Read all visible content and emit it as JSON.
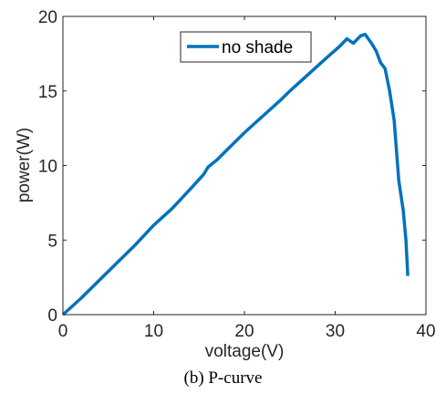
{
  "chart_data": {
    "type": "line",
    "xlabel": "voltage(V)",
    "ylabel": "power(W)",
    "xlim": [
      0,
      40
    ],
    "ylim": [
      0,
      20
    ],
    "xticks": [
      0,
      10,
      20,
      30,
      40
    ],
    "yticks": [
      0,
      5,
      10,
      15,
      20
    ],
    "legend_position": "top-center",
    "grid": false,
    "series": [
      {
        "name": "no shade",
        "color": "#0072BD",
        "points": [
          [
            0,
            0
          ],
          [
            2,
            1.1
          ],
          [
            4,
            2.3
          ],
          [
            6,
            3.5
          ],
          [
            8,
            4.7
          ],
          [
            10,
            6.0
          ],
          [
            12,
            7.1
          ],
          [
            14,
            8.4
          ],
          [
            15.5,
            9.4
          ],
          [
            16,
            9.9
          ],
          [
            17,
            10.4
          ],
          [
            18,
            11.0
          ],
          [
            20,
            12.2
          ],
          [
            22,
            13.3
          ],
          [
            24,
            14.4
          ],
          [
            25,
            15.0
          ],
          [
            27,
            16.1
          ],
          [
            29,
            17.2
          ],
          [
            30.5,
            18.0
          ],
          [
            31.3,
            18.5
          ],
          [
            32,
            18.2
          ],
          [
            32.8,
            18.7
          ],
          [
            33.3,
            18.8
          ],
          [
            34,
            18.2
          ],
          [
            34.5,
            17.7
          ],
          [
            35,
            16.9
          ],
          [
            35.5,
            16.5
          ],
          [
            36,
            15.0
          ],
          [
            36.5,
            13.0
          ],
          [
            37,
            9.0
          ],
          [
            37.5,
            7.0
          ],
          [
            37.8,
            5.0
          ],
          [
            38,
            2.6
          ]
        ]
      }
    ]
  },
  "caption": "(b) P-curve"
}
